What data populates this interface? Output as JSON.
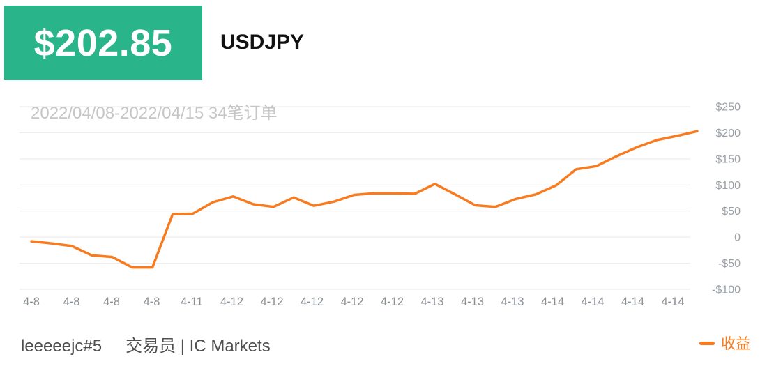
{
  "header": {
    "total_profit": "$202.85",
    "symbol": "USDJPY",
    "accent_green": "#2ab48a"
  },
  "chart_data": {
    "type": "line",
    "title": "2022/04/08-2022/04/15 34笔订单",
    "order_count": 34,
    "date_range": "2022/04/08-2022/04/15",
    "series": [
      {
        "name": "收益",
        "color": "#f87b1f",
        "values": [
          -8,
          -12,
          -17,
          -35,
          -38,
          -58,
          -58,
          44,
          45,
          67,
          78,
          63,
          58,
          76,
          60,
          68,
          81,
          84,
          84,
          83,
          102,
          82,
          61,
          58,
          73,
          82,
          99,
          130,
          136,
          155,
          172,
          186,
          194,
          203
        ]
      }
    ],
    "x_tick_labels": [
      "4-8",
      "4-8",
      "4-8",
      "4-8",
      "4-11",
      "4-12",
      "4-12",
      "4-12",
      "4-12",
      "4-12",
      "4-13",
      "4-13",
      "4-13",
      "4-14",
      "4-14",
      "4-14",
      "4-14"
    ],
    "y_ticks": [
      {
        "value": 250,
        "label": "$250"
      },
      {
        "value": 200,
        "label": "$200"
      },
      {
        "value": 150,
        "label": "$150"
      },
      {
        "value": 100,
        "label": "$100"
      },
      {
        "value": 50,
        "label": "$50"
      },
      {
        "value": 0,
        "label": "0"
      },
      {
        "value": -50,
        "label": "-$50"
      },
      {
        "value": -100,
        "label": "-$100"
      }
    ],
    "ylim": [
      -100,
      250
    ],
    "grid": true,
    "legend_position": "bottom-right"
  },
  "footer": {
    "username": "leeeeejc#5",
    "role": "交易员 | IC Markets",
    "legend_label": "收益",
    "legend_color": "#f87b1f"
  }
}
